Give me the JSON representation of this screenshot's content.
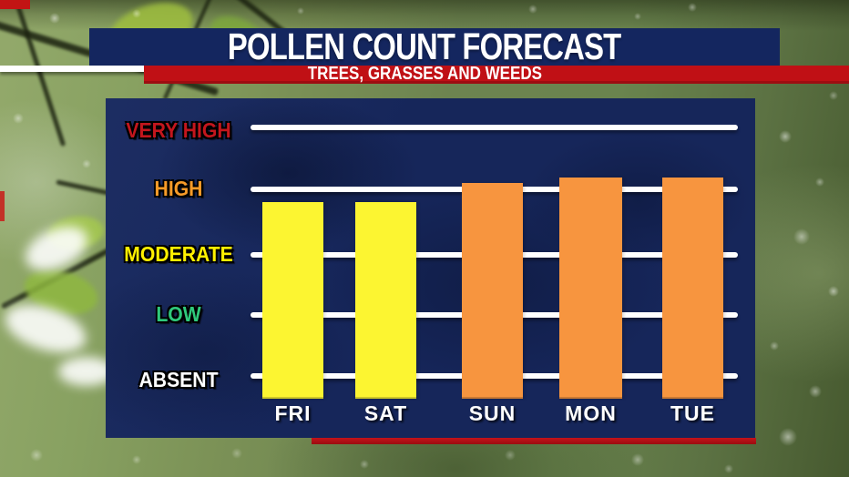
{
  "header": {
    "title": "POLLEN COUNT FORECAST",
    "subtitle": "TREES, GRASSES AND WEEDS"
  },
  "chart_data": {
    "type": "bar",
    "title": "POLLEN COUNT FORECAST",
    "subtitle": "TREES, GRASSES AND WEEDS",
    "categories": [
      "FRI",
      "SAT",
      "SUN",
      "MON",
      "TUE"
    ],
    "values": [
      2.8,
      2.8,
      3.1,
      3.2,
      3.2
    ],
    "value_scale": {
      "0": "ABSENT",
      "1": "LOW",
      "2": "MODERATE",
      "3": "HIGH",
      "4": "VERY HIGH"
    },
    "ylim": [
      0,
      4.5
    ],
    "grid": true,
    "legend": false,
    "bar_colors": [
      "#fcf531",
      "#fcf531",
      "#f7953f",
      "#f7953f",
      "#f7953f"
    ],
    "yticks": [
      {
        "label": "VERY HIGH",
        "value": 4,
        "color": "#c3161d"
      },
      {
        "label": "HIGH",
        "value": 3,
        "color": "#f79b28"
      },
      {
        "label": "MODERATE",
        "value": 2,
        "color": "#fff000"
      },
      {
        "label": "LOW",
        "value": 1,
        "color": "#2fc97b"
      },
      {
        "label": "ABSENT",
        "value": 0,
        "color": "#ffffff"
      }
    ]
  },
  "colors": {
    "header_navy": "#14265f",
    "panel_navy": "#16265a",
    "accent_red": "#c01015",
    "bottom_bar_red": "#9b0d10",
    "gridline_white": "#ffffff",
    "yellow_bar": "#fcf531",
    "orange_bar": "#f7953f"
  }
}
